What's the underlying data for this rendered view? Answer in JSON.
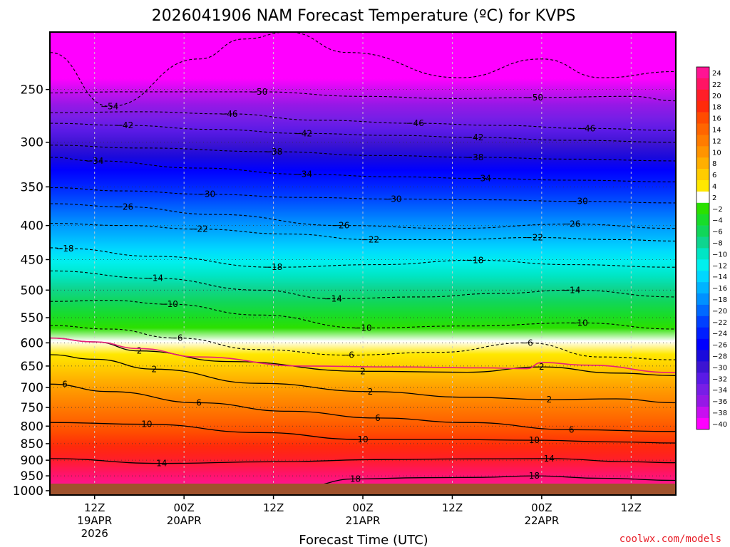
{
  "chart_data": {
    "type": "heatmap",
    "title": "2026041906 NAM Forecast Temperature (ºC) for KVPS",
    "xlabel": "Forecast Time (UTC)",
    "ylabel": "",
    "y_ticks": [
      "250",
      "300",
      "350",
      "400",
      "450",
      "500",
      "550",
      "600",
      "650",
      "700",
      "750",
      "800",
      "850",
      "900",
      "950",
      "1000"
    ],
    "y_tick_values": [
      250,
      300,
      350,
      400,
      450,
      500,
      550,
      600,
      650,
      700,
      750,
      800,
      850,
      900,
      950,
      1000
    ],
    "x_ticks": [
      {
        "h": 6,
        "l1": "12Z",
        "l2": "19APR",
        "l3": "2026"
      },
      {
        "h": 18,
        "l1": "00Z",
        "l2": "20APR",
        "l3": ""
      },
      {
        "h": 30,
        "l1": "12Z",
        "l2": "",
        "l3": ""
      },
      {
        "h": 42,
        "l1": "00Z",
        "l2": "21APR",
        "l3": ""
      },
      {
        "h": 54,
        "l1": "12Z",
        "l2": "",
        "l3": ""
      },
      {
        "h": 66,
        "l1": "00Z",
        "l2": "22APR",
        "l3": ""
      },
      {
        "h": 78,
        "l1": "12Z",
        "l2": "",
        "l3": ""
      }
    ],
    "x_range_hours": [
      0,
      84
    ],
    "colorbar_labels": [
      "24",
      "22",
      "20",
      "18",
      "16",
      "14",
      "12",
      "10",
      "8",
      "6",
      "4",
      "2",
      "−2",
      "−4",
      "−6",
      "−8",
      "−10",
      "−12",
      "−14",
      "−16",
      "−18",
      "−20",
      "−22",
      "−24",
      "−26",
      "−28",
      "−30",
      "−32",
      "−34",
      "−36",
      "−38",
      "−40"
    ],
    "colorbar_colors": [
      "#ff1493",
      "#ff1464",
      "#ff1e28",
      "#ff2a0a",
      "#ff4b00",
      "#ff6500",
      "#ff7c00",
      "#ff9400",
      "#ffaf00",
      "#ffcc00",
      "#ffe800",
      "#ffffff",
      "#2be000",
      "#18dc2a",
      "#11d65a",
      "#0ed58f",
      "#00e6c5",
      "#00f0ee",
      "#00d7ff",
      "#00b4ff",
      "#0091ff",
      "#0069ff",
      "#0040ff",
      "#001eff",
      "#0000ff",
      "#1a0adc",
      "#3c14d2",
      "#5a1ae6",
      "#781ee6",
      "#9618e6",
      "#c80ff0",
      "#ff00ff"
    ],
    "contours": [
      {
        "label": "−54",
        "name": "contour-minus-54",
        "label_pos": [
          [
            8,
            265
          ]
        ],
        "pts": [
          [
            0,
            220
          ],
          [
            8,
            265
          ],
          [
            20,
            225
          ],
          [
            26,
            210
          ],
          [
            32,
            205
          ],
          [
            40,
            220
          ],
          [
            55,
            240
          ],
          [
            66,
            225
          ],
          [
            74,
            240
          ],
          [
            84,
            235
          ]
        ]
      },
      {
        "label": "−50",
        "name": "contour-minus-50",
        "label_pos": [
          [
            28,
            252
          ],
          [
            65,
            257
          ]
        ],
        "pts": [
          [
            0,
            253
          ],
          [
            10,
            252
          ],
          [
            28,
            252
          ],
          [
            42,
            256
          ],
          [
            54,
            258
          ],
          [
            65,
            257
          ],
          [
            78,
            256
          ],
          [
            84,
            260
          ]
        ]
      },
      {
        "label": "−46",
        "name": "contour-minus-46",
        "label_pos": [
          [
            24,
            272
          ],
          [
            49,
            281
          ],
          [
            72,
            286
          ]
        ],
        "pts": [
          [
            0,
            271
          ],
          [
            12,
            270
          ],
          [
            24,
            272
          ],
          [
            36,
            278
          ],
          [
            49,
            281
          ],
          [
            60,
            283
          ],
          [
            72,
            286
          ],
          [
            84,
            288
          ]
        ]
      },
      {
        "label": "−42",
        "name": "contour-minus-42",
        "label_pos": [
          [
            10,
            283
          ],
          [
            34,
            291
          ],
          [
            57,
            295
          ]
        ],
        "pts": [
          [
            0,
            281
          ],
          [
            10,
            283
          ],
          [
            22,
            287
          ],
          [
            34,
            291
          ],
          [
            46,
            293
          ],
          [
            57,
            295
          ],
          [
            70,
            298
          ],
          [
            84,
            300
          ]
        ]
      },
      {
        "label": "−38",
        "name": "contour-minus-38",
        "label_pos": [
          [
            30,
            310
          ],
          [
            57,
            316
          ]
        ],
        "pts": [
          [
            0,
            303
          ],
          [
            12,
            306
          ],
          [
            30,
            310
          ],
          [
            44,
            314
          ],
          [
            57,
            316
          ],
          [
            70,
            318
          ],
          [
            84,
            320
          ]
        ]
      },
      {
        "label": "−34",
        "name": "contour-minus-34",
        "label_pos": [
          [
            6,
            320
          ],
          [
            34,
            335
          ],
          [
            58,
            340
          ]
        ],
        "pts": [
          [
            0,
            316
          ],
          [
            6,
            320
          ],
          [
            20,
            328
          ],
          [
            34,
            335
          ],
          [
            46,
            338
          ],
          [
            58,
            340
          ],
          [
            70,
            342
          ],
          [
            84,
            344
          ]
        ]
      },
      {
        "label": "−30",
        "name": "contour-minus-30",
        "label_pos": [
          [
            21,
            359
          ],
          [
            46,
            365
          ],
          [
            71,
            368
          ]
        ],
        "pts": [
          [
            0,
            351
          ],
          [
            10,
            355
          ],
          [
            21,
            359
          ],
          [
            34,
            363
          ],
          [
            46,
            365
          ],
          [
            58,
            366
          ],
          [
            71,
            368
          ],
          [
            84,
            370
          ]
        ]
      },
      {
        "label": "−26",
        "name": "contour-minus-26",
        "label_pos": [
          [
            10,
            375
          ],
          [
            39,
            400
          ],
          [
            70,
            398
          ]
        ],
        "pts": [
          [
            0,
            371
          ],
          [
            10,
            375
          ],
          [
            22,
            385
          ],
          [
            39,
            400
          ],
          [
            54,
            404
          ],
          [
            70,
            398
          ],
          [
            84,
            404
          ]
        ]
      },
      {
        "label": "−22",
        "name": "contour-minus-22",
        "label_pos": [
          [
            20,
            405
          ],
          [
            43,
            420
          ],
          [
            65,
            417
          ]
        ],
        "pts": [
          [
            0,
            397
          ],
          [
            10,
            400
          ],
          [
            20,
            405
          ],
          [
            32,
            412
          ],
          [
            43,
            420
          ],
          [
            54,
            420
          ],
          [
            65,
            417
          ],
          [
            76,
            420
          ],
          [
            84,
            422
          ]
        ]
      },
      {
        "label": "−18",
        "name": "contour-minus-18",
        "label_pos": [
          [
            2,
            433
          ],
          [
            30,
            462
          ],
          [
            57,
            451
          ]
        ],
        "pts": [
          [
            0,
            432
          ],
          [
            2,
            433
          ],
          [
            14,
            445
          ],
          [
            30,
            462
          ],
          [
            44,
            458
          ],
          [
            57,
            451
          ],
          [
            70,
            458
          ],
          [
            84,
            462
          ]
        ]
      },
      {
        "label": "−14",
        "name": "contour-minus-14",
        "label_pos": [
          [
            14,
            480
          ],
          [
            38,
            515
          ],
          [
            70,
            500
          ]
        ],
        "pts": [
          [
            0,
            468
          ],
          [
            14,
            480
          ],
          [
            28,
            500
          ],
          [
            38,
            515
          ],
          [
            50,
            512
          ],
          [
            60,
            506
          ],
          [
            70,
            500
          ],
          [
            84,
            512
          ]
        ]
      },
      {
        "label": "−10",
        "name": "contour-minus-10",
        "label_pos": [
          [
            16,
            525
          ],
          [
            42,
            570
          ],
          [
            71,
            560
          ]
        ],
        "pts": [
          [
            0,
            520
          ],
          [
            8,
            518
          ],
          [
            16,
            525
          ],
          [
            28,
            545
          ],
          [
            42,
            570
          ],
          [
            56,
            566
          ],
          [
            71,
            560
          ],
          [
            84,
            572
          ]
        ]
      },
      {
        "label": "−6",
        "name": "contour-minus-6",
        "label_pos": [
          [
            17,
            590
          ],
          [
            40,
            626
          ],
          [
            64,
            600
          ]
        ],
        "pts": [
          [
            0,
            565
          ],
          [
            8,
            572
          ],
          [
            17,
            590
          ],
          [
            28,
            614
          ],
          [
            40,
            626
          ],
          [
            52,
            620
          ],
          [
            64,
            600
          ],
          [
            74,
            630
          ],
          [
            84,
            636
          ]
        ]
      },
      {
        "label": "2",
        "name": "contour-plus-2-upper",
        "label_pos": [
          [
            12,
            617
          ],
          [
            42,
            662
          ],
          [
            66,
            652
          ]
        ],
        "pts": [
          [
            0,
            590
          ],
          [
            6,
            598
          ],
          [
            12,
            617
          ],
          [
            24,
            640
          ],
          [
            42,
            662
          ],
          [
            56,
            664
          ],
          [
            66,
            652
          ],
          [
            76,
            666
          ],
          [
            84,
            672
          ]
        ]
      },
      {
        "label": "2",
        "name": "contour-plus-2-lower",
        "label_pos": [
          [
            14,
            657
          ],
          [
            43,
            710
          ],
          [
            67,
            730
          ]
        ],
        "pts": [
          [
            0,
            625
          ],
          [
            6,
            635
          ],
          [
            14,
            657
          ],
          [
            28,
            690
          ],
          [
            43,
            710
          ],
          [
            56,
            724
          ],
          [
            67,
            730
          ],
          [
            76,
            728
          ],
          [
            84,
            738
          ]
        ]
      },
      {
        "label": "6",
        "name": "contour-plus-6",
        "label_pos": [
          [
            2,
            692
          ],
          [
            20,
            738
          ],
          [
            44,
            778
          ],
          [
            70,
            810
          ]
        ],
        "pts": [
          [
            0,
            692
          ],
          [
            8,
            710
          ],
          [
            20,
            738
          ],
          [
            32,
            760
          ],
          [
            44,
            778
          ],
          [
            56,
            790
          ],
          [
            70,
            810
          ],
          [
            84,
            815
          ]
        ]
      },
      {
        "label": "10",
        "name": "contour-plus-10",
        "label_pos": [
          [
            13,
            795
          ],
          [
            42,
            838
          ],
          [
            65,
            840
          ]
        ],
        "pts": [
          [
            0,
            790
          ],
          [
            13,
            795
          ],
          [
            28,
            818
          ],
          [
            42,
            838
          ],
          [
            54,
            838
          ],
          [
            65,
            840
          ],
          [
            76,
            845
          ],
          [
            84,
            848
          ]
        ]
      },
      {
        "label": "14",
        "name": "contour-plus-14",
        "label_pos": [
          [
            15,
            910
          ],
          [
            67,
            895
          ]
        ],
        "pts": [
          [
            0,
            895
          ],
          [
            15,
            910
          ],
          [
            30,
            905
          ],
          [
            45,
            898
          ],
          [
            56,
            896
          ],
          [
            67,
            895
          ],
          [
            78,
            905
          ],
          [
            84,
            908
          ]
        ]
      },
      {
        "label": "18",
        "name": "contour-plus-18",
        "label_pos": [
          [
            41,
            960
          ],
          [
            65,
            950
          ]
        ],
        "pts": [
          [
            28,
            1010
          ],
          [
            34,
            985
          ],
          [
            41,
            960
          ],
          [
            50,
            956
          ],
          [
            58,
            955
          ],
          [
            65,
            950
          ],
          [
            74,
            958
          ],
          [
            84,
            965
          ]
        ]
      }
    ],
    "freezing_line": [
      [
        0,
        590
      ],
      [
        6,
        598
      ],
      [
        12,
        612
      ],
      [
        20,
        630
      ],
      [
        34,
        650
      ],
      [
        46,
        652
      ],
      [
        58,
        654
      ],
      [
        64,
        656
      ],
      [
        66,
        642
      ],
      [
        72,
        648
      ],
      [
        84,
        665
      ]
    ],
    "colors": {
      "ground": "#a0522d",
      "axis": "#000000",
      "freezing": "#e8207a",
      "grid": "#bbbbbb"
    }
  },
  "watermark": "coolwx.com/models"
}
